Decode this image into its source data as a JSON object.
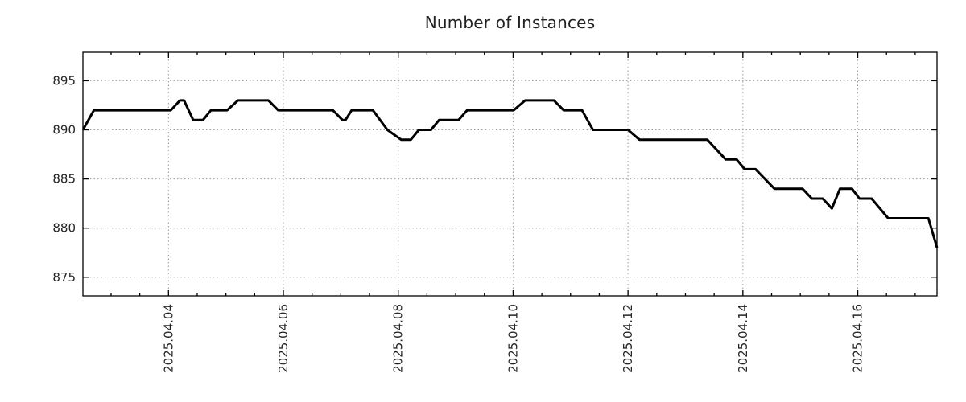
{
  "chart_data": {
    "type": "line",
    "title": "Number of Instances",
    "x_axis": {
      "tick_labels": [
        "2025.04.04",
        "2025.04.06",
        "2025.04.08",
        "2025.04.10",
        "2025.04.12",
        "2025.04.14",
        "2025.04.16"
      ],
      "tick_days": [
        4,
        6,
        8,
        10,
        12,
        14,
        16
      ],
      "minor_tick_step_days": 0.5,
      "range_days": [
        2.51,
        17.38
      ]
    },
    "y_axis": {
      "tick_labels": [
        "875",
        "880",
        "885",
        "890",
        "895"
      ],
      "tick_values": [
        875,
        880,
        885,
        890,
        895
      ],
      "range": [
        873.1,
        897.9
      ]
    },
    "grid": {
      "show": true,
      "style": "dotted"
    },
    "legend": {
      "show": false
    },
    "colors": {
      "line": "#000000",
      "grid": "#9c9c9c",
      "axis": "#000000",
      "text": "#262626"
    },
    "series": [
      {
        "name": "instances",
        "points_day_value": [
          [
            2.51,
            890
          ],
          [
            2.7,
            892
          ],
          [
            4.04,
            892
          ],
          [
            4.2,
            893
          ],
          [
            4.27,
            893
          ],
          [
            4.43,
            891
          ],
          [
            4.6,
            891
          ],
          [
            4.74,
            892
          ],
          [
            5.02,
            892
          ],
          [
            5.21,
            893
          ],
          [
            5.74,
            893
          ],
          [
            5.91,
            892
          ],
          [
            6.86,
            892
          ],
          [
            7.03,
            891
          ],
          [
            7.08,
            891
          ],
          [
            7.19,
            892
          ],
          [
            7.56,
            892
          ],
          [
            7.81,
            890
          ],
          [
            8.05,
            889
          ],
          [
            8.22,
            889
          ],
          [
            8.36,
            890
          ],
          [
            8.57,
            890
          ],
          [
            8.71,
            891
          ],
          [
            9.05,
            891
          ],
          [
            9.2,
            892
          ],
          [
            10.01,
            892
          ],
          [
            10.21,
            893
          ],
          [
            10.71,
            893
          ],
          [
            10.88,
            892
          ],
          [
            11.2,
            892
          ],
          [
            11.39,
            890
          ],
          [
            12.0,
            890
          ],
          [
            12.2,
            889
          ],
          [
            13.38,
            889
          ],
          [
            13.7,
            887
          ],
          [
            13.89,
            887
          ],
          [
            14.03,
            886
          ],
          [
            14.22,
            886
          ],
          [
            14.55,
            884
          ],
          [
            15.04,
            884
          ],
          [
            15.2,
            883
          ],
          [
            15.39,
            883
          ],
          [
            15.55,
            882
          ],
          [
            15.69,
            884
          ],
          [
            15.9,
            884
          ],
          [
            16.03,
            883
          ],
          [
            16.24,
            883
          ],
          [
            16.53,
            881
          ],
          [
            17.23,
            881
          ],
          [
            17.38,
            878
          ]
        ]
      }
    ]
  }
}
